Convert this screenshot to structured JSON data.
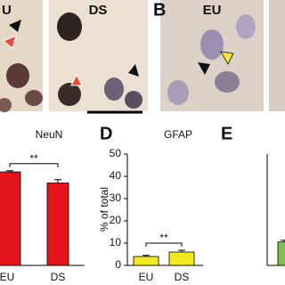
{
  "images": [
    {
      "label": "U"
    },
    {
      "label": "DS"
    },
    {
      "label": "EU"
    }
  ],
  "panel_letters": [
    "B",
    "D",
    "E"
  ],
  "chart_data": [
    {
      "type": "bar",
      "title": "NeuN",
      "categories": [
        "EU",
        "DS"
      ],
      "values": [
        42,
        37
      ],
      "errors": [
        0.5,
        1.5
      ],
      "color": "#e3141b",
      "ylim": [
        0,
        50
      ],
      "annotation": "**"
    },
    {
      "type": "bar",
      "title": "GFAP",
      "categories": [
        "EU",
        "DS"
      ],
      "values": [
        4,
        6
      ],
      "errors": [
        0.5,
        0.8
      ],
      "color": "#f2ea1e",
      "ylim": [
        0,
        50
      ],
      "yticks": [
        0,
        10,
        20,
        30,
        40,
        50
      ],
      "y_label": "% of total",
      "annotation": "**"
    },
    {
      "type": "bar",
      "categories": [
        null
      ],
      "values": [
        10.5
      ],
      "errors": [
        0.8
      ],
      "color": "#7cc24a",
      "ylim": [
        0,
        50
      ]
    }
  ]
}
